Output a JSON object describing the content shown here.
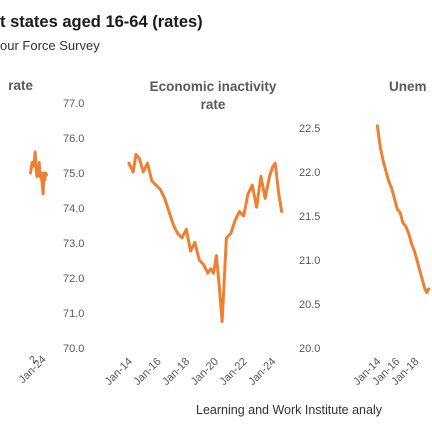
{
  "header": {
    "title": "t states aged 16-64 (rates)",
    "subtitle": "our Force Survey",
    "source": "Learning and Work Institute analy"
  },
  "chart_data": [
    {
      "type": "line",
      "title": "rate",
      "ylim": [
        70.0,
        77.0
      ],
      "yticks": [
        "70.0",
        "71.0",
        "72.0",
        "73.0",
        "74.0",
        "75.0",
        "76.0",
        "77.0"
      ],
      "xticks": [
        "2",
        "Jan-24"
      ],
      "xtick_values": [
        2022,
        2024
      ],
      "xlim": [
        2014.2,
        2025.0
      ],
      "grid": false,
      "color": "#ef7f31",
      "x": [
        2021.2,
        2021.6,
        2022.0,
        2022.3,
        2022.5,
        2022.7,
        2023.0,
        2023.2,
        2023.4,
        2023.6,
        2023.9,
        2024.1,
        2024.3,
        2024.5,
        2024.7,
        2024.9
      ],
      "y": [
        75.0,
        75.3,
        75.2,
        75.6,
        75.1,
        74.9,
        75.0,
        75.3,
        74.9,
        75.0,
        74.7,
        74.4,
        75.0,
        74.8,
        75.0,
        74.95
      ]
    },
    {
      "type": "line",
      "title": "Economic inactivity rate",
      "ylim": [
        20.0,
        22.5
      ],
      "yticks": [
        "20.0",
        "20.5",
        "21.0",
        "21.5",
        "22.0",
        "22.5"
      ],
      "xticks": [
        "Jan-14",
        "Jan-16",
        "Jan-18",
        "Jan-20",
        "Jan-22",
        "Jan-24"
      ],
      "xtick_values": [
        2014,
        2016,
        2018,
        2020,
        2022,
        2024
      ],
      "xlim": [
        2013.8,
        2024.95
      ],
      "grid": false,
      "color": "#ef7f31",
      "x": [
        2014.0,
        2014.3,
        2014.5,
        2014.75,
        2015.0,
        2015.3,
        2015.6,
        2015.9,
        2016.2,
        2016.5,
        2016.8,
        2017.1,
        2017.4,
        2017.7,
        2018.0,
        2018.3,
        2018.6,
        2018.9,
        2019.2,
        2019.5,
        2019.7,
        2019.9,
        2020.1,
        2020.3,
        2020.5,
        2020.8,
        2021.1,
        2021.4,
        2021.7,
        2022.0,
        2022.3,
        2022.6,
        2022.9,
        2023.2,
        2023.5,
        2023.8,
        2024.0,
        2024.2,
        2024.45,
        2024.65
      ],
      "y": [
        22.1,
        22.0,
        22.2,
        22.15,
        22.0,
        22.1,
        21.9,
        21.85,
        21.8,
        21.7,
        21.55,
        21.4,
        21.3,
        21.25,
        21.35,
        21.1,
        21.2,
        21.0,
        20.95,
        20.85,
        20.9,
        20.85,
        21.05,
        20.7,
        20.3,
        21.25,
        21.3,
        21.45,
        21.55,
        21.5,
        21.75,
        21.85,
        21.6,
        21.95,
        21.7,
        21.95,
        22.05,
        22.1,
        21.75,
        21.55
      ]
    },
    {
      "type": "line",
      "title": "Unem",
      "ylim": [
        3.5,
        7.0
      ],
      "xticks": [
        "Jan-14",
        "Jan-16",
        "Jan-18"
      ],
      "xtick_values": [
        2014,
        2016,
        2018
      ],
      "xlim": [
        2013.75,
        2019.75
      ],
      "grid": false,
      "color": "#ef7f31",
      "x": [
        2014.0,
        2014.3,
        2014.6,
        2014.9,
        2015.2,
        2015.5,
        2015.8,
        2016.1,
        2016.4,
        2016.7,
        2017.0,
        2017.3,
        2017.6,
        2017.9,
        2018.2,
        2018.5,
        2018.8,
        2019.0,
        2019.2,
        2019.4
      ],
      "y": [
        6.7,
        6.4,
        6.2,
        6.05,
        5.9,
        5.8,
        5.65,
        5.5,
        5.45,
        5.3,
        5.25,
        5.15,
        5.0,
        4.9,
        4.75,
        4.6,
        4.45,
        4.35,
        4.3,
        4.35
      ]
    }
  ]
}
